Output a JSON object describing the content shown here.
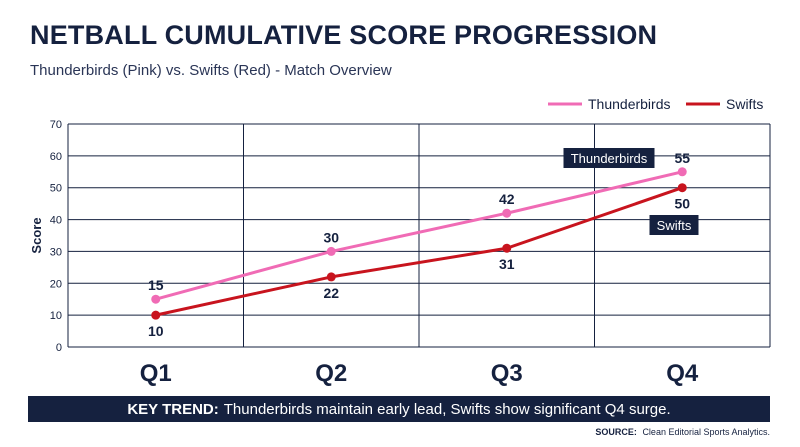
{
  "header": {
    "title": "NETBALL CUMULATIVE SCORE PROGRESSION",
    "subtitle": "Thunderbirds (Pink) vs. Swifts (Red) - Match Overview"
  },
  "footer": {
    "banner_label": "KEY TREND:",
    "banner_text": "Thunderbirds maintain early lead, Swifts show significant Q4 surge.",
    "source_label": "SOURCE:",
    "source_text": "Clean Editorial Sports Analytics."
  },
  "chart_data": {
    "type": "line",
    "categories": [
      "Q1",
      "Q2",
      "Q3",
      "Q4"
    ],
    "ylabel": "Score",
    "xlabel": "",
    "ylim": [
      0,
      70
    ],
    "yticks": [
      0,
      10,
      20,
      30,
      40,
      50,
      60,
      70
    ],
    "grid": true,
    "legend_position": "top-right",
    "series": [
      {
        "name": "Thunderbirds",
        "color": "#f06bb5",
        "values": [
          15,
          30,
          42,
          55
        ],
        "end_label": "Thunderbirds"
      },
      {
        "name": "Swifts",
        "color": "#c8141e",
        "values": [
          10,
          22,
          31,
          50
        ],
        "end_label": "Swifts"
      }
    ]
  }
}
